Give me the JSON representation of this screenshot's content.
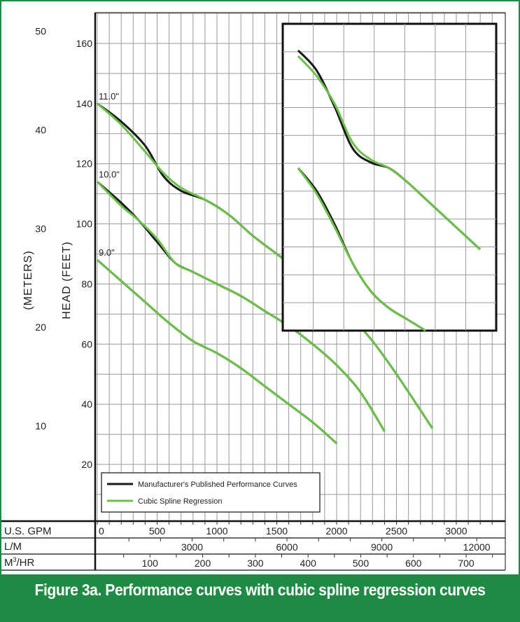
{
  "caption": "Figure 3a. Performance curves with cubic spline regression curves",
  "colors": {
    "frame": "#1f8a43",
    "caption_bg": "#1f8a43",
    "published": "#1a1a1a",
    "regression": "#6cc04a",
    "grid": "#9a9a9a"
  },
  "chart_data": {
    "type": "line",
    "xlabel": "U.S. GPM",
    "ylabel": "HEAD (FEET)",
    "ylabel_secondary": "(METERS)",
    "xlim": [
      0,
      3300
    ],
    "ylim": [
      0,
      165
    ],
    "grid": true,
    "legend_placement": "bottom-left",
    "x_ticks": [
      0,
      500,
      1000,
      1500,
      2000,
      2500,
      3000
    ],
    "y_ticks": [
      20,
      40,
      60,
      80,
      100,
      120,
      140,
      160
    ],
    "meters_ticks": [
      10,
      20,
      30,
      40,
      50
    ],
    "lpm_ticks": [
      3000,
      6000,
      9000,
      12000
    ],
    "m3hr_ticks": [
      100,
      200,
      300,
      400,
      500,
      600,
      700
    ],
    "row_labels": {
      "gpm": "U.S. GPM",
      "lpm": "L/M",
      "m3hr_base": "M",
      "m3hr_sup": "3",
      "m3hr_tail": "/HR"
    },
    "legend": [
      {
        "label": "Manufacturer's Published Performance Curves",
        "color": "#1a1a1a"
      },
      {
        "label": "Cubic Spline Regression",
        "color": "#6cc04a"
      }
    ],
    "curves": [
      {
        "label": "11.0\"",
        "published": {
          "x": [
            0,
            200,
            400,
            550,
            700,
            900,
            1100,
            1300,
            1500,
            1700,
            1900,
            2100,
            2300,
            2500,
            2800
          ],
          "y": [
            140,
            134,
            126,
            116,
            111,
            108,
            103,
            96,
            90,
            84,
            78,
            70,
            61,
            50,
            32
          ]
        },
        "regression": {
          "x": [
            0,
            200,
            400,
            550,
            700,
            900,
            1100,
            1300,
            1500,
            1700,
            1900,
            2100,
            2300,
            2500,
            2800
          ],
          "y": [
            140,
            133,
            124,
            117,
            112,
            108,
            103,
            96,
            90,
            84,
            78,
            70,
            61,
            50,
            32
          ]
        }
      },
      {
        "label": "10.0\"",
        "published": {
          "x": [
            0,
            200,
            350,
            500,
            650,
            800,
            1000,
            1200,
            1400,
            1600,
            1800,
            2000,
            2200,
            2400
          ],
          "y": [
            114,
            107,
            101,
            94,
            87,
            84,
            80,
            76,
            71,
            66,
            60,
            53,
            44,
            31
          ]
        },
        "regression": {
          "x": [
            0,
            200,
            350,
            500,
            650,
            800,
            1000,
            1200,
            1400,
            1600,
            1800,
            2000,
            2200,
            2400
          ],
          "y": [
            114,
            106,
            101,
            95,
            87,
            84,
            80,
            76,
            71,
            66,
            60,
            53,
            44,
            31
          ]
        }
      },
      {
        "label": "9.0\"",
        "published": {
          "x": [
            0,
            200,
            400,
            600,
            800,
            1000,
            1200,
            1400,
            1600,
            1800,
            2000
          ],
          "y": [
            88,
            81,
            74,
            67,
            61,
            57,
            52,
            46,
            40,
            34,
            27
          ]
        },
        "regression": {
          "x": [
            0,
            200,
            400,
            600,
            800,
            1000,
            1200,
            1400,
            1600,
            1800,
            2000
          ],
          "y": [
            88,
            81,
            74,
            67,
            61,
            57,
            52,
            46,
            40,
            34,
            27
          ]
        }
      }
    ],
    "inset": {
      "curves": [
        {
          "published": {
            "x": [
              0,
              0.1,
              0.2,
              0.3,
              0.4,
              0.5,
              0.6,
              0.7,
              0.8,
              0.9,
              1.0
            ],
            "y": [
              150,
              143,
              130,
              115,
              110,
              108,
              103,
              97,
              91,
              85,
              79
            ]
          },
          "regression": {
            "x": [
              0,
              0.1,
              0.2,
              0.3,
              0.4,
              0.5,
              0.6,
              0.7,
              0.8,
              0.9,
              1.0
            ],
            "y": [
              148,
              141,
              131,
              117,
              111,
              108,
              103,
              97,
              91,
              85,
              79
            ]
          }
        },
        {
          "published": {
            "x": [
              0,
              0.1,
              0.2,
              0.3,
              0.4,
              0.5,
              0.6,
              0.7
            ],
            "y": [
              108,
              100,
              88,
              74,
              64,
              58,
              54,
              50
            ]
          },
          "regression": {
            "x": [
              0,
              0.1,
              0.2,
              0.3,
              0.4,
              0.5,
              0.6,
              0.7
            ],
            "y": [
              108,
              99,
              87,
              74,
              64,
              58,
              54,
              50
            ]
          }
        }
      ]
    }
  }
}
